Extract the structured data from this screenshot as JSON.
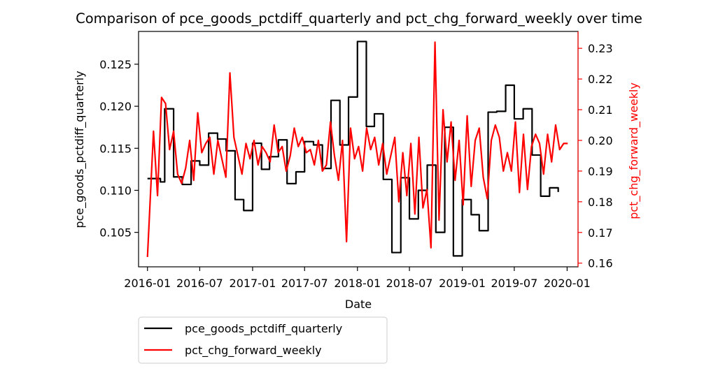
{
  "chart_data": {
    "type": "line",
    "title": "Comparison of pce_goods_pctdiff_quarterly and pct_chg_forward_weekly over time",
    "xlabel": "Date",
    "ylabel_left": "pce_goods_pctdiff_quarterly",
    "ylabel_right": "pct_chg_forward_weekly",
    "x_ticks": [
      "2016-01",
      "2016-07",
      "2017-01",
      "2017-07",
      "2018-01",
      "2018-07",
      "2019-01",
      "2019-07",
      "2020-01"
    ],
    "x_range": [
      "2015-12-01",
      "2020-02-08"
    ],
    "y_left_ticks": [
      0.105,
      0.11,
      0.115,
      0.12,
      0.125
    ],
    "y_left_tick_labels": [
      "0.105",
      "0.110",
      "0.115",
      "0.120",
      "0.125"
    ],
    "y_left_range": [
      0.1009,
      0.1289
    ],
    "y_right_ticks": [
      0.16,
      0.17,
      0.18,
      0.19,
      0.2,
      0.21,
      0.22,
      0.23
    ],
    "y_right_tick_labels": [
      "0.16",
      "0.17",
      "0.18",
      "0.19",
      "0.20",
      "0.21",
      "0.22",
      "0.23"
    ],
    "y_right_range": [
      0.1588,
      0.2355
    ],
    "grid": false,
    "legend_position": "below-left",
    "colors": {
      "left_series": "#000000",
      "right_series": "#ff0000",
      "right_axis": "#ff0000"
    },
    "series": [
      {
        "name": "pce_goods_pctdiff_quarterly",
        "axis": "left",
        "step": true,
        "x": [
          "2016-01-01",
          "2016-02-15",
          "2016-03-01",
          "2016-04-01",
          "2016-05-01",
          "2016-06-01",
          "2016-07-01",
          "2016-08-01",
          "2016-09-01",
          "2016-10-01",
          "2016-11-01",
          "2016-12-01",
          "2017-01-01",
          "2017-02-01",
          "2017-03-01",
          "2017-04-01",
          "2017-05-01",
          "2017-06-01",
          "2017-07-01",
          "2017-08-01",
          "2017-09-01",
          "2017-10-01",
          "2017-11-01",
          "2017-12-01",
          "2018-01-01",
          "2018-02-01",
          "2018-03-01",
          "2018-04-01",
          "2018-05-01",
          "2018-06-01",
          "2018-07-01",
          "2018-08-01",
          "2018-09-01",
          "2018-10-01",
          "2018-11-01",
          "2018-12-01",
          "2019-01-01",
          "2019-02-01",
          "2019-03-01",
          "2019-04-01",
          "2019-05-01",
          "2019-06-01",
          "2019-07-01",
          "2019-08-01",
          "2019-09-01",
          "2019-10-01",
          "2019-11-01",
          "2019-12-01"
        ],
        "values": [
          0.1114,
          0.111,
          0.1197,
          0.1116,
          0.1107,
          0.1135,
          0.113,
          0.1168,
          0.1161,
          0.1147,
          0.1089,
          0.1076,
          0.1156,
          0.1125,
          0.114,
          0.116,
          0.1108,
          0.1122,
          0.1158,
          0.1154,
          0.1126,
          0.1207,
          0.1154,
          0.1211,
          0.1277,
          0.1176,
          0.1191,
          0.1113,
          0.1026,
          0.1115,
          0.1066,
          0.11,
          0.113,
          0.105,
          0.1175,
          0.1022,
          0.1089,
          0.1071,
          0.1052,
          0.1193,
          0.1194,
          0.1225,
          0.1185,
          0.1197,
          0.1142,
          0.1093,
          0.1103,
          0.1098
        ]
      },
      {
        "name": "pct_chg_forward_weekly",
        "axis": "right",
        "step": false,
        "x": [
          "2016-01-01",
          "2016-01-22",
          "2016-02-05",
          "2016-02-19",
          "2016-03-04",
          "2016-03-18",
          "2016-04-01",
          "2016-04-15",
          "2016-04-29",
          "2016-05-13",
          "2016-05-27",
          "2016-06-10",
          "2016-06-24",
          "2016-07-08",
          "2016-07-22",
          "2016-08-05",
          "2016-08-19",
          "2016-09-02",
          "2016-09-16",
          "2016-09-30",
          "2016-10-14",
          "2016-10-28",
          "2016-11-11",
          "2016-11-25",
          "2016-12-09",
          "2016-12-23",
          "2017-01-06",
          "2017-01-20",
          "2017-02-03",
          "2017-02-17",
          "2017-03-03",
          "2017-03-17",
          "2017-03-31",
          "2017-04-14",
          "2017-04-28",
          "2017-05-12",
          "2017-05-26",
          "2017-06-09",
          "2017-06-23",
          "2017-07-07",
          "2017-07-21",
          "2017-08-04",
          "2017-08-18",
          "2017-09-01",
          "2017-09-15",
          "2017-09-29",
          "2017-10-13",
          "2017-10-27",
          "2017-11-10",
          "2017-11-24",
          "2017-12-08",
          "2017-12-22",
          "2018-01-05",
          "2018-01-19",
          "2018-02-02",
          "2018-02-16",
          "2018-03-02",
          "2018-03-16",
          "2018-03-30",
          "2018-04-13",
          "2018-04-27",
          "2018-05-11",
          "2018-05-25",
          "2018-06-08",
          "2018-06-22",
          "2018-07-06",
          "2018-07-20",
          "2018-08-03",
          "2018-08-17",
          "2018-08-31",
          "2018-09-14",
          "2018-09-28",
          "2018-10-12",
          "2018-10-26",
          "2018-11-09",
          "2018-11-23",
          "2018-12-07",
          "2018-12-21",
          "2019-01-04",
          "2019-01-18",
          "2019-02-01",
          "2019-02-15",
          "2019-03-01",
          "2019-03-15",
          "2019-03-29",
          "2019-04-12",
          "2019-04-26",
          "2019-05-10",
          "2019-05-24",
          "2019-06-07",
          "2019-06-21",
          "2019-07-05",
          "2019-07-19",
          "2019-08-02",
          "2019-08-16",
          "2019-08-30",
          "2019-09-13",
          "2019-09-27",
          "2019-10-11",
          "2019-10-25",
          "2019-11-08",
          "2019-11-22",
          "2019-12-06",
          "2019-12-20",
          "2020-01-03"
        ],
        "values": [
          0.162,
          0.203,
          0.182,
          0.214,
          0.212,
          0.197,
          0.203,
          0.189,
          0.186,
          0.191,
          0.2,
          0.187,
          0.209,
          0.196,
          0.199,
          0.201,
          0.189,
          0.2,
          0.194,
          0.188,
          0.222,
          0.201,
          0.195,
          0.189,
          0.199,
          0.194,
          0.2,
          0.192,
          0.198,
          0.196,
          0.193,
          0.205,
          0.196,
          0.198,
          0.19,
          0.195,
          0.204,
          0.198,
          0.201,
          0.196,
          0.197,
          0.192,
          0.2,
          0.19,
          0.192,
          0.206,
          0.195,
          0.187,
          0.2,
          0.167,
          0.204,
          0.194,
          0.198,
          0.19,
          0.204,
          0.197,
          0.201,
          0.192,
          0.199,
          0.189,
          0.195,
          0.201,
          0.18,
          0.196,
          0.182,
          0.199,
          0.176,
          0.201,
          0.178,
          0.184,
          0.165,
          0.232,
          0.174,
          0.21,
          0.193,
          0.206,
          0.187,
          0.2,
          0.179,
          0.208,
          0.185,
          0.2,
          0.204,
          0.188,
          0.181,
          0.2,
          0.205,
          0.201,
          0.19,
          0.196,
          0.19,
          0.206,
          0.183,
          0.202,
          0.184,
          0.198,
          0.202,
          0.199,
          0.189,
          0.202,
          0.193,
          0.205,
          0.197,
          0.199,
          0.199
        ]
      }
    ]
  }
}
